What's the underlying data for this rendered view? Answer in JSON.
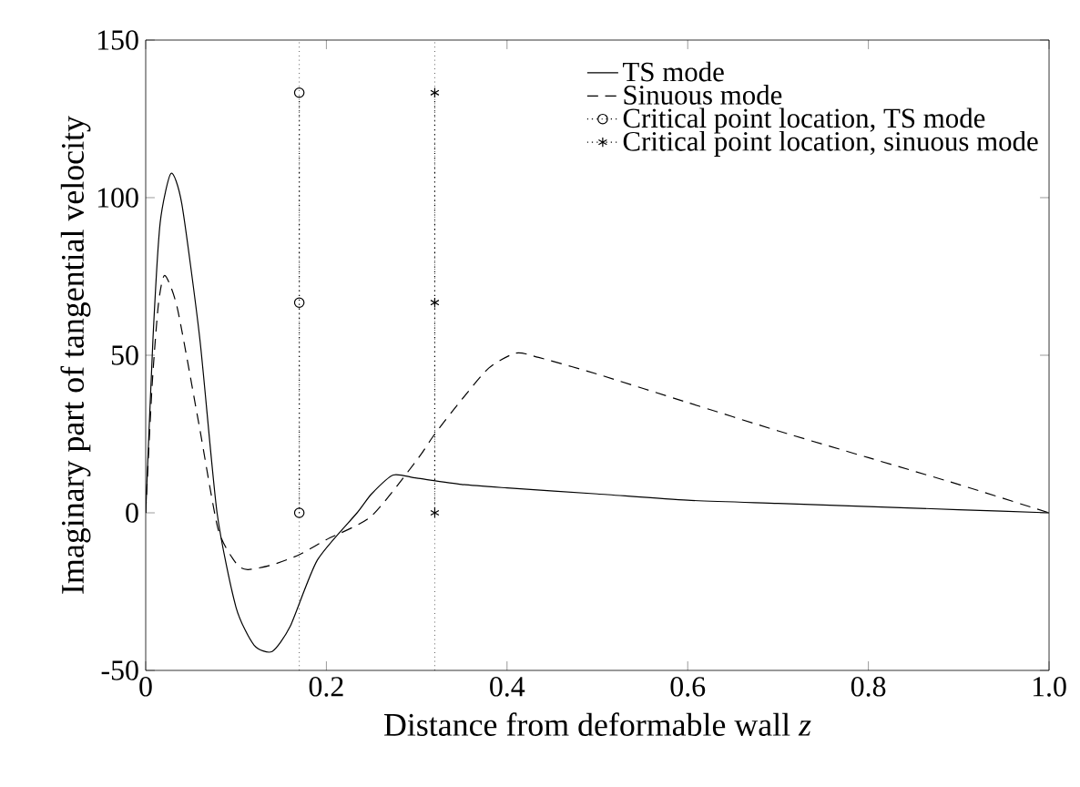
{
  "chart_data": {
    "type": "line",
    "xlabel": "Distance from deformable wall *z*",
    "ylabel": "Imaginary part of tangential velocity",
    "xlim": [
      0,
      1.0
    ],
    "ylim": [
      -50,
      150
    ],
    "xticks": [
      0,
      0.2,
      0.4,
      0.6,
      {
        "value": 0.8,
        "label": "0.8"
      },
      {
        "value": 1.0,
        "label": "1.0"
      }
    ],
    "yticks": [
      -50,
      0,
      50,
      100,
      150
    ],
    "grid": false,
    "legend": "top right",
    "series": [
      {
        "name": "TS mode",
        "color": "#000000",
        "line_style": "solid",
        "marker": "none",
        "x": [
          0,
          0.008,
          0.016,
          0.028,
          0.04,
          0.06,
          0.079,
          0.1,
          0.12,
          0.14,
          0.16,
          0.19,
          0.234,
          0.25,
          0.274,
          0.3,
          0.35,
          0.4,
          0.5,
          0.6,
          0.7,
          0.8,
          0.9,
          1.0
        ],
        "values": [
          0,
          55,
          92,
          107.7,
          98,
          55,
          0,
          -30,
          -42,
          -44,
          -36,
          -15,
          0,
          6,
          12,
          11,
          9,
          7.9,
          6,
          4,
          3,
          2,
          1,
          0
        ]
      },
      {
        "name": "Sinuous mode",
        "color": "#000000",
        "line_style": "dashed",
        "marker": "none",
        "x": [
          0,
          0.007,
          0.014,
          0.021,
          0.035,
          0.059,
          0.08,
          0.1,
          0.113,
          0.14,
          0.17,
          0.2,
          0.25,
          0.3,
          0.32,
          0.35,
          0.38,
          0.41,
          0.435,
          0.5,
          0.6,
          0.7,
          0.8,
          0.9,
          1.0
        ],
        "values": [
          0,
          40,
          66,
          75.3,
          65,
          28,
          -5,
          -16,
          -18,
          -16.5,
          -13.3,
          -8.5,
          -1,
          16.7,
          25,
          36,
          46,
          50.7,
          49.3,
          44,
          35,
          26,
          17.5,
          9,
          0
        ]
      },
      {
        "name": "Critical point location, TS mode",
        "color": "#000000",
        "line_style": "dotted",
        "marker": "circle",
        "x": [
          0.17,
          0.17,
          0.17
        ],
        "values": [
          0,
          66.7,
          133.3
        ]
      },
      {
        "name": "Critical point location, sinuous mode",
        "color": "#000000",
        "line_style": "dotted",
        "marker": "cross",
        "x": [
          0.32,
          0.32,
          0.32
        ],
        "values": [
          0,
          66.7,
          133.3
        ]
      }
    ],
    "ref_lines": [
      {
        "axis": "x",
        "value": 0.17,
        "line_style": "dotted",
        "color": "#000000"
      },
      {
        "axis": "x",
        "value": 0.32,
        "line_style": "dotted",
        "color": "#000000"
      }
    ]
  }
}
